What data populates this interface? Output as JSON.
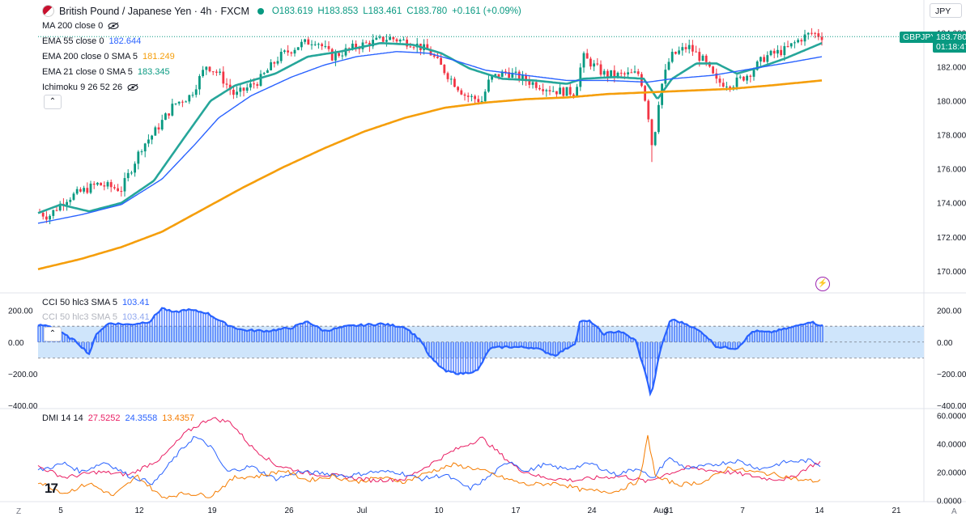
{
  "header": {
    "symbol": "British Pound / Japanese Yen · 4h · FXCM",
    "open": "O183.619",
    "high": "H183.853",
    "low": "L183.461",
    "close": "C183.780",
    "change": "+0.161 (+0.09%)",
    "indicators": [
      {
        "label": "MA 200 close 0",
        "value": "",
        "color": "#9598a1"
      },
      {
        "label": "EMA 55 close 0",
        "value": "182.644",
        "color": "#2962ff"
      },
      {
        "label": "EMA 200 close 0 SMA 5",
        "value": "181.249",
        "color": "#f59e0b"
      },
      {
        "label": "EMA 21 close 0 SMA 5",
        "value": "183.345",
        "color": "#089981"
      },
      {
        "label": "Ichimoku 9 26 52 26",
        "value": "",
        "color": "#9598a1"
      }
    ]
  },
  "currency_button": "JPY",
  "price_tag": {
    "symbol": "GBPJPY",
    "price": "183.780",
    "countdown": "01:18:47"
  },
  "cci_legend": {
    "label": "CCI 50 hlc3 SMA 5",
    "value": "103.41",
    "color": "#2962ff"
  },
  "dmi_legend": {
    "label": "DMI 14 14",
    "v1": "27.5252",
    "v2": "24.3558",
    "v3": "13.4357",
    "c1": "#e91e63",
    "c2": "#2962ff",
    "c3": "#f57c00"
  },
  "time_axis": [
    "5",
    "12",
    "19",
    "26",
    "Jul",
    "10",
    "17",
    "24",
    "31",
    "Aug",
    "7",
    "14",
    "21"
  ],
  "corner_left": "Z",
  "corner_right": "A",
  "chart_data": [
    {
      "type": "candlestick",
      "title": "British Pound / Japanese Yen · 4h · FXCM",
      "price_axis_ticks": [
        "170.000",
        "172.000",
        "174.000",
        "176.000",
        "178.000",
        "180.000",
        "182.000",
        "184.000"
      ],
      "ylim": [
        168.8,
        184.6
      ],
      "x_ticks": [
        "5",
        "12",
        "19",
        "26",
        "Jul",
        "10",
        "17",
        "24",
        "31",
        "Aug",
        "7",
        "14",
        "21"
      ],
      "anchors_close": [
        [
          0,
          173.6
        ],
        [
          20,
          174.0
        ],
        [
          40,
          173.6
        ],
        [
          60,
          173.2
        ],
        [
          80,
          174.2
        ],
        [
          120,
          175.1
        ],
        [
          150,
          174.8
        ],
        [
          175,
          177.3
        ],
        [
          190,
          178.1
        ],
        [
          215,
          179.8
        ],
        [
          235,
          180.3
        ],
        [
          255,
          182.1
        ],
        [
          270,
          181.6
        ],
        [
          290,
          180.3
        ],
        [
          320,
          181.2
        ],
        [
          345,
          182.6
        ],
        [
          370,
          183.3
        ],
        [
          390,
          183.6
        ],
        [
          410,
          182.6
        ],
        [
          440,
          183.2
        ],
        [
          480,
          183.7
        ],
        [
          510,
          183.4
        ],
        [
          530,
          182.9
        ],
        [
          555,
          181.4
        ],
        [
          575,
          180.3
        ],
        [
          595,
          180.0
        ],
        [
          605,
          181.3
        ],
        [
          625,
          181.7
        ],
        [
          655,
          181.1
        ],
        [
          685,
          180.6
        ],
        [
          710,
          180.5
        ],
        [
          720,
          182.6
        ],
        [
          745,
          181.6
        ],
        [
          765,
          181.5
        ],
        [
          790,
          181.6
        ],
        [
          800,
          179.4
        ],
        [
          806,
          177.1
        ],
        [
          815,
          180.6
        ],
        [
          828,
          182.6
        ],
        [
          850,
          183.2
        ],
        [
          870,
          182.3
        ],
        [
          885,
          181.1
        ],
        [
          905,
          181.0
        ],
        [
          925,
          181.6
        ],
        [
          945,
          182.6
        ],
        [
          970,
          183.0
        ],
        [
          990,
          183.7
        ],
        [
          1003,
          184.0
        ],
        [
          1015,
          183.8
        ]
      ],
      "series": [
        {
          "name": "EMA 21 close 0 SMA 5",
          "color": "#26a69a",
          "points": [
            [
              47,
              173.4
            ],
            [
              75,
              173.9
            ],
            [
              110,
              173.5
            ],
            [
              150,
              174.0
            ],
            [
              190,
              175.3
            ],
            [
              230,
              178.0
            ],
            [
              260,
              180.0
            ],
            [
              290,
              180.9
            ],
            [
              340,
              181.6
            ],
            [
              380,
              182.6
            ],
            [
              420,
              182.9
            ],
            [
              470,
              183.4
            ],
            [
              510,
              183.3
            ],
            [
              545,
              182.8
            ],
            [
              580,
              181.9
            ],
            [
              620,
              181.3
            ],
            [
              660,
              181.2
            ],
            [
              700,
              181.0
            ],
            [
              720,
              181.3
            ],
            [
              760,
              181.4
            ],
            [
              795,
              181.3
            ],
            [
              812,
              180.1
            ],
            [
              830,
              181.3
            ],
            [
              860,
              182.2
            ],
            [
              885,
              182.2
            ],
            [
              910,
              181.6
            ],
            [
              940,
              182.0
            ],
            [
              970,
              182.5
            ],
            [
              1000,
              183.1
            ],
            [
              1015,
              183.4
            ]
          ]
        },
        {
          "name": "EMA 55 close 0",
          "color": "#2962ff",
          "points": [
            [
              47,
              172.8
            ],
            [
              100,
              173.3
            ],
            [
              150,
              173.9
            ],
            [
              200,
              175.4
            ],
            [
              240,
              177.4
            ],
            [
              270,
              179.0
            ],
            [
              310,
              180.3
            ],
            [
              360,
              181.4
            ],
            [
              400,
              182.1
            ],
            [
              440,
              182.6
            ],
            [
              490,
              182.9
            ],
            [
              530,
              182.8
            ],
            [
              560,
              182.4
            ],
            [
              600,
              181.8
            ],
            [
              650,
              181.5
            ],
            [
              700,
              181.2
            ],
            [
              750,
              181.2
            ],
            [
              800,
              181.1
            ],
            [
              830,
              181.3
            ],
            [
              880,
              181.5
            ],
            [
              930,
              181.9
            ],
            [
              980,
              182.3
            ],
            [
              1015,
              182.6
            ]
          ]
        },
        {
          "name": "EMA 200 close 0 SMA 5",
          "color": "#f59e0b",
          "points": [
            [
              47,
              170.1
            ],
            [
              100,
              170.7
            ],
            [
              150,
              171.4
            ],
            [
              200,
              172.3
            ],
            [
              250,
              173.6
            ],
            [
              300,
              174.9
            ],
            [
              350,
              176.1
            ],
            [
              400,
              177.2
            ],
            [
              450,
              178.2
            ],
            [
              500,
              179.0
            ],
            [
              550,
              179.6
            ],
            [
              600,
              179.9
            ],
            [
              650,
              180.1
            ],
            [
              700,
              180.2
            ],
            [
              750,
              180.4
            ],
            [
              800,
              180.5
            ],
            [
              850,
              180.6
            ],
            [
              900,
              180.7
            ],
            [
              950,
              180.9
            ],
            [
              1015,
              181.2
            ]
          ]
        }
      ]
    },
    {
      "type": "area",
      "title": "CCI 50 hlc3 SMA 5",
      "y_ticks": [
        "200.00",
        "0.00",
        "−200.00",
        "−400.00"
      ],
      "ylim": [
        -420,
        290
      ],
      "band": [
        -100,
        100
      ],
      "anchors": [
        [
          47,
          105
        ],
        [
          60,
          105
        ],
        [
          75,
          60
        ],
        [
          95,
          0
        ],
        [
          110,
          -75
        ],
        [
          120,
          60
        ],
        [
          135,
          120
        ],
        [
          160,
          110
        ],
        [
          185,
          130
        ],
        [
          200,
          215
        ],
        [
          215,
          185
        ],
        [
          230,
          205
        ],
        [
          255,
          185
        ],
        [
          280,
          110
        ],
        [
          300,
          75
        ],
        [
          330,
          70
        ],
        [
          360,
          90
        ],
        [
          380,
          130
        ],
        [
          400,
          70
        ],
        [
          430,
          100
        ],
        [
          470,
          115
        ],
        [
          500,
          95
        ],
        [
          520,
          10
        ],
        [
          530,
          -90
        ],
        [
          550,
          -185
        ],
        [
          570,
          -200
        ],
        [
          590,
          -180
        ],
        [
          605,
          -40
        ],
        [
          625,
          -30
        ],
        [
          660,
          -35
        ],
        [
          685,
          -85
        ],
        [
          700,
          -40
        ],
        [
          712,
          0
        ],
        [
          715,
          130
        ],
        [
          730,
          130
        ],
        [
          745,
          50
        ],
        [
          765,
          70
        ],
        [
          785,
          10
        ],
        [
          800,
          -250
        ],
        [
          804,
          -350
        ],
        [
          815,
          -60
        ],
        [
          828,
          145
        ],
        [
          850,
          110
        ],
        [
          870,
          50
        ],
        [
          885,
          -30
        ],
        [
          910,
          -40
        ],
        [
          930,
          70
        ],
        [
          950,
          60
        ],
        [
          980,
          95
        ],
        [
          1000,
          130
        ],
        [
          1015,
          103.41
        ]
      ]
    },
    {
      "type": "line",
      "title": "DMI 14 14",
      "y_ticks": [
        "60.0000",
        "40.0000",
        "20.0000",
        "0.0000"
      ],
      "ylim": [
        -1,
        63
      ],
      "series": [
        {
          "name": "27.5252",
          "color": "#e91e63",
          "points": [
            [
              47,
              24
            ],
            [
              80,
              16
            ],
            [
              120,
              20
            ],
            [
              160,
              18
            ],
            [
              200,
              30
            ],
            [
              230,
              48
            ],
            [
              260,
              58
            ],
            [
              285,
              55
            ],
            [
              310,
              38
            ],
            [
              340,
              25
            ],
            [
              380,
              19
            ],
            [
              420,
              17
            ],
            [
              460,
              14
            ],
            [
              500,
              15
            ],
            [
              530,
              25
            ],
            [
              560,
              35
            ],
            [
              595,
              44
            ],
            [
              615,
              34
            ],
            [
              640,
              22
            ],
            [
              670,
              16
            ],
            [
              710,
              14
            ],
            [
              740,
              16
            ],
            [
              770,
              17
            ],
            [
              800,
              13
            ],
            [
              820,
              18
            ],
            [
              850,
              23
            ],
            [
              880,
              21
            ],
            [
              910,
              19
            ],
            [
              950,
              15
            ],
            [
              975,
              15
            ],
            [
              1000,
              24
            ],
            [
              1015,
              27.5
            ]
          ]
        },
        {
          "name": "24.3558",
          "color": "#2962ff",
          "points": [
            [
              47,
              21
            ],
            [
              80,
              26
            ],
            [
              100,
              20
            ],
            [
              130,
              27
            ],
            [
              160,
              17
            ],
            [
              190,
              12
            ],
            [
              220,
              33
            ],
            [
              240,
              45
            ],
            [
              260,
              38
            ],
            [
              280,
              20
            ],
            [
              310,
              24
            ],
            [
              340,
              15
            ],
            [
              370,
              20
            ],
            [
              400,
              19
            ],
            [
              430,
              17
            ],
            [
              460,
              20
            ],
            [
              490,
              20
            ],
            [
              520,
              15
            ],
            [
              550,
              18
            ],
            [
              580,
              8
            ],
            [
              600,
              15
            ],
            [
              630,
              28
            ],
            [
              650,
              20
            ],
            [
              670,
              25
            ],
            [
              700,
              22
            ],
            [
              730,
              26
            ],
            [
              760,
              18
            ],
            [
              790,
              23
            ],
            [
              805,
              14
            ],
            [
              825,
              30
            ],
            [
              850,
              22
            ],
            [
              880,
              25
            ],
            [
              910,
              28
            ],
            [
              940,
              22
            ],
            [
              970,
              27
            ],
            [
              1000,
              28
            ],
            [
              1015,
              24.4
            ]
          ]
        },
        {
          "name": "13.4357",
          "color": "#f57c00",
          "points": [
            [
              47,
              13
            ],
            [
              80,
              5
            ],
            [
              110,
              12
            ],
            [
              140,
              3
            ],
            [
              170,
              17
            ],
            [
              200,
              2
            ],
            [
              230,
              5
            ],
            [
              260,
              3
            ],
            [
              290,
              16
            ],
            [
              320,
              17
            ],
            [
              350,
              21
            ],
            [
              380,
              14
            ],
            [
              410,
              17
            ],
            [
              440,
              13
            ],
            [
              470,
              16
            ],
            [
              500,
              13
            ],
            [
              530,
              20
            ],
            [
              560,
              25
            ],
            [
              590,
              22
            ],
            [
              620,
              16
            ],
            [
              650,
              11
            ],
            [
              690,
              12
            ],
            [
              720,
              7
            ],
            [
              760,
              6
            ],
            [
              790,
              14
            ],
            [
              800,
              45
            ],
            [
              810,
              16
            ],
            [
              840,
              11
            ],
            [
              870,
              13
            ],
            [
              900,
              23
            ],
            [
              930,
              20
            ],
            [
              960,
              18
            ],
            [
              990,
              14
            ],
            [
              1015,
              13.4
            ]
          ]
        }
      ]
    }
  ]
}
